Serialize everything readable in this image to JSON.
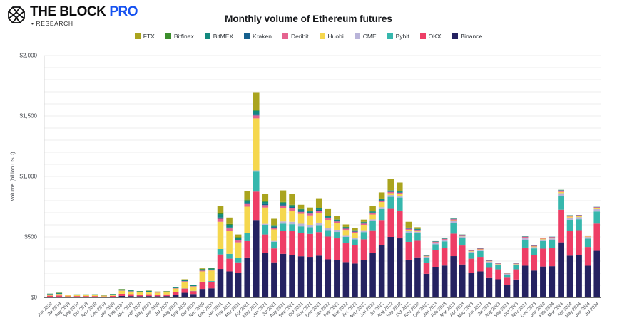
{
  "header": {
    "brand_name": "THE BLOCK",
    "brand_suffix": "PRO",
    "brand_sub": "• RESEARCH",
    "brand_accent_color": "#1652f0"
  },
  "chart_data": {
    "type": "bar",
    "stacked": true,
    "title": "Monthly volume of Ethereum futures",
    "ylabel": "Volume (billion USD)",
    "legend_position": "top",
    "grid": "horizontal-minor-100",
    "y_axis": {
      "min": 0,
      "max": 2000,
      "minor_step": 100
    },
    "y_ticks": [
      {
        "v": 0,
        "label": "$0"
      },
      {
        "v": 500,
        "label": "$500"
      },
      {
        "v": 1000,
        "label": "$1,000"
      },
      {
        "v": 1500,
        "label": "$1,500"
      },
      {
        "v": 2000,
        "label": "$2,000"
      }
    ],
    "categories": [
      "Jun 2019",
      "Jul 2019",
      "Aug 2019",
      "Sep 2019",
      "Oct 2019",
      "Nov 2019",
      "Dec 2019",
      "Jan 2020",
      "Feb 2020",
      "Mar 2020",
      "Apr 2020",
      "May 2020",
      "Jun 2020",
      "Jul 2020",
      "Aug 2020",
      "Sep 2020",
      "Oct 2020",
      "Nov 2020",
      "Dec 2020",
      "Jan 2021",
      "Feb 2021",
      "Mar 2021",
      "Apr 2021",
      "May 2021",
      "Jun 2021",
      "Jul 2021",
      "Aug 2021",
      "Sep 2021",
      "Oct 2021",
      "Nov 2021",
      "Dec 2021",
      "Jan 2022",
      "Feb 2022",
      "Mar 2022",
      "Apr 2022",
      "May 2022",
      "Jun 2022",
      "Jul 2022",
      "Aug 2022",
      "Sep 2022",
      "Oct 2022",
      "Nov 2022",
      "Dec 2022",
      "Jan 2023",
      "Feb 2023",
      "Mar 2023",
      "Apr 2023",
      "May 2023",
      "Jun 2023",
      "Jul 2023",
      "Aug 2023",
      "Sep 2023",
      "Oct 2023",
      "Nov 2023",
      "Dec 2023",
      "Jan 2024",
      "Feb 2024",
      "Mar 2024",
      "Apr 2024",
      "May 2024",
      "Jun 2024",
      "Jul 2024"
    ],
    "stack_bottom_to_top": [
      "Binance",
      "OKX",
      "Bybit",
      "CME",
      "Huobi",
      "Deribit",
      "Kraken",
      "BitMEX",
      "Bitfinex",
      "FTX"
    ],
    "series": [
      {
        "name": "FTX",
        "color": "#aaa41e",
        "values": [
          0,
          1,
          0,
          0,
          0,
          0,
          0,
          0,
          1,
          1,
          1,
          2,
          1,
          2,
          2,
          3,
          3,
          5,
          4,
          58,
          53,
          23,
          72,
          147,
          60,
          51,
          96,
          89,
          35,
          28,
          80,
          55,
          30,
          20,
          15,
          18,
          40,
          50,
          95,
          71,
          48,
          13,
          0,
          0,
          0,
          0,
          0,
          0,
          0,
          0,
          0,
          0,
          0,
          0,
          0,
          0,
          0,
          0,
          0,
          0,
          0,
          0
        ]
      },
      {
        "name": "Bitfinex",
        "color": "#3c8e2c",
        "values": [
          2,
          3,
          1,
          1,
          1,
          1,
          1,
          1,
          3,
          2,
          2,
          2,
          2,
          2,
          2,
          3,
          2,
          3,
          3,
          9,
          7,
          5,
          7,
          8,
          6,
          4,
          5,
          5,
          4,
          4,
          4,
          4,
          3,
          3,
          3,
          3,
          3,
          3,
          3,
          3,
          2,
          2,
          1,
          1,
          1,
          1,
          1,
          0,
          0,
          0,
          0,
          0,
          0,
          1,
          0,
          0,
          0,
          1,
          1,
          0,
          0,
          0
        ]
      },
      {
        "name": "BitMEX",
        "color": "#13897e",
        "values": [
          4,
          6,
          3,
          3,
          3,
          4,
          3,
          4,
          8,
          7,
          6,
          6,
          5,
          5,
          7,
          9,
          6,
          9,
          8,
          28,
          22,
          16,
          20,
          26,
          18,
          12,
          16,
          14,
          12,
          11,
          12,
          10,
          9,
          8,
          7,
          8,
          9,
          10,
          8,
          7,
          5,
          4,
          2,
          2,
          2,
          2,
          1,
          1,
          1,
          1,
          1,
          0,
          1,
          1,
          1,
          1,
          1,
          2,
          1,
          0,
          0,
          1
        ]
      },
      {
        "name": "Kraken",
        "color": "#15608e",
        "values": [
          0,
          0,
          0,
          0,
          0,
          0,
          0,
          0,
          1,
          1,
          0,
          0,
          0,
          0,
          1,
          1,
          1,
          2,
          2,
          10,
          8,
          6,
          9,
          12,
          8,
          6,
          8,
          10,
          8,
          7,
          8,
          6,
          5,
          4,
          4,
          4,
          5,
          5,
          4,
          4,
          3,
          3,
          1,
          2,
          2,
          3,
          2,
          2,
          2,
          2,
          1,
          1,
          1,
          2,
          2,
          2,
          2,
          3,
          2,
          2,
          2,
          2
        ]
      },
      {
        "name": "Deribit",
        "color": "#e5638f",
        "values": [
          1,
          1,
          1,
          1,
          1,
          1,
          1,
          1,
          2,
          2,
          2,
          2,
          2,
          2,
          3,
          4,
          3,
          6,
          6,
          25,
          20,
          15,
          22,
          24,
          20,
          15,
          22,
          20,
          16,
          15,
          18,
          14,
          12,
          10,
          9,
          10,
          11,
          12,
          10,
          10,
          8,
          7,
          4,
          6,
          6,
          8,
          6,
          5,
          6,
          4,
          4,
          3,
          4,
          7,
          6,
          6,
          6,
          12,
          8,
          8,
          6,
          8
        ]
      },
      {
        "name": "Huobi",
        "color": "#f5d74e",
        "values": [
          10,
          12,
          8,
          9,
          9,
          9,
          7,
          10,
          25,
          21,
          18,
          19,
          16,
          17,
          30,
          55,
          36,
          85,
          86,
          225,
          190,
          130,
          220,
          430,
          135,
          95,
          110,
          92,
          82,
          78,
          80,
          65,
          57,
          43,
          40,
          45,
          40,
          42,
          15,
          14,
          10,
          8,
          3,
          5,
          4,
          8,
          6,
          4,
          4,
          3,
          3,
          2,
          3,
          6,
          5,
          6,
          6,
          10,
          8,
          8,
          5,
          8
        ]
      },
      {
        "name": "CME",
        "color": "#b9b4d9",
        "values": [
          0,
          0,
          0,
          0,
          0,
          0,
          0,
          0,
          0,
          0,
          0,
          0,
          0,
          0,
          0,
          0,
          0,
          0,
          0,
          0,
          0,
          0,
          0,
          10,
          8,
          7,
          18,
          20,
          22,
          20,
          20,
          20,
          18,
          15,
          14,
          15,
          15,
          16,
          15,
          15,
          12,
          10,
          8,
          10,
          10,
          15,
          12,
          10,
          10,
          8,
          7,
          6,
          7,
          12,
          11,
          13,
          14,
          22,
          18,
          18,
          14,
          20
        ]
      },
      {
        "name": "Bybit",
        "color": "#36b7ad",
        "values": [
          0,
          0,
          0,
          0,
          0,
          0,
          0,
          0,
          0,
          0,
          0,
          0,
          0,
          0,
          1,
          2,
          2,
          5,
          6,
          45,
          40,
          35,
          65,
          165,
          80,
          55,
          60,
          55,
          52,
          55,
          58,
          53,
          53,
          53,
          50,
          60,
          75,
          90,
          100,
          108,
          78,
          65,
          45,
          49,
          53,
          88,
          63,
          48,
          48,
          38,
          34,
          25,
          34,
          64,
          55,
          63,
          65,
          115,
          90,
          90,
          68,
          100
        ]
      },
      {
        "name": "OKX",
        "color": "#ee3e66",
        "values": [
          9,
          10,
          6,
          7,
          7,
          7,
          5,
          8,
          18,
          16,
          14,
          15,
          13,
          14,
          22,
          35,
          24,
          55,
          55,
          120,
          105,
          85,
          135,
          235,
          150,
          115,
          190,
          200,
          195,
          190,
          195,
          188,
          180,
          155,
          150,
          170,
          185,
          210,
          232,
          230,
          147,
          137,
          88,
          137,
          147,
          186,
          157,
          115,
          120,
          90,
          82,
          58,
          84,
          150,
          128,
          148,
          150,
          270,
          207,
          208,
          155,
          225
        ]
      },
      {
        "name": "Binance",
        "color": "#252261",
        "values": [
          5,
          6,
          3,
          4,
          4,
          4,
          3,
          5,
          12,
          11,
          10,
          11,
          10,
          11,
          20,
          38,
          28,
          70,
          75,
          235,
          215,
          205,
          330,
          640,
          370,
          290,
          360,
          350,
          340,
          335,
          345,
          315,
          308,
          292,
          280,
          310,
          370,
          430,
          500,
          488,
          312,
          331,
          195,
          253,
          263,
          341,
          272,
          205,
          215,
          160,
          150,
          105,
          148,
          262,
          222,
          255,
          258,
          455,
          345,
          348,
          262,
          385
        ]
      }
    ]
  }
}
